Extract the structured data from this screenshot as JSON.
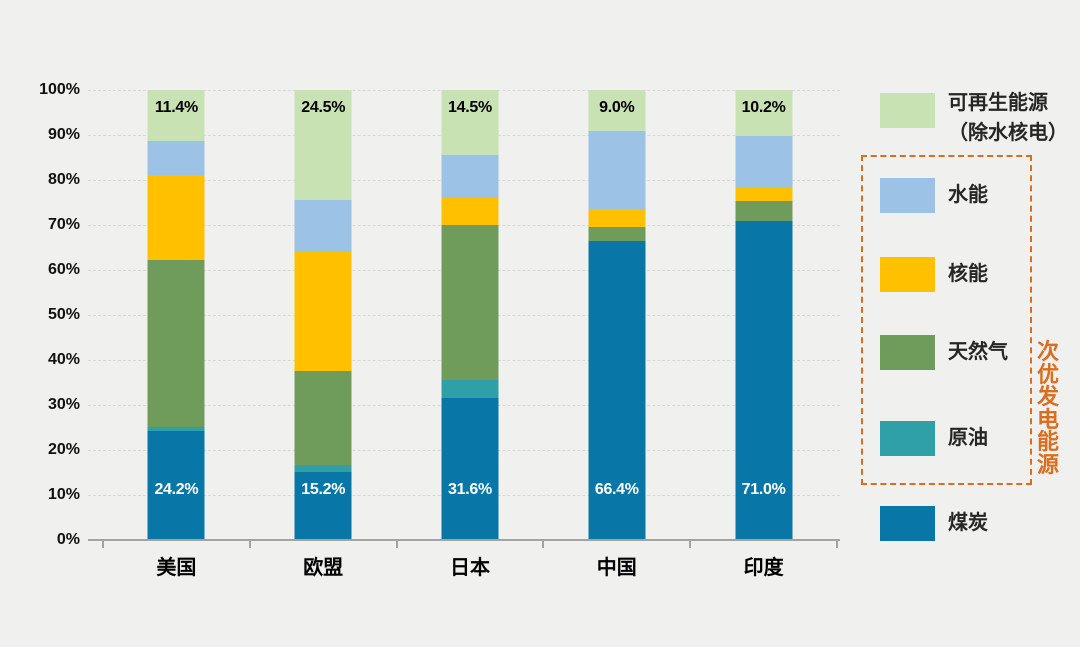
{
  "colors": {
    "background": "#f0f0ee",
    "grid": "#d7d7d4",
    "axis": "#a3a3a3",
    "coal": "#0877a8",
    "oil": "#2fa0a8",
    "gas": "#6f9b5b",
    "nuclear": "#ffc000",
    "hydro": "#9cc2e5",
    "renewable": "#c9e2b4",
    "group_accent": "#d96e20"
  },
  "chart_data": {
    "type": "bar",
    "stacked": true,
    "unit": "%",
    "categories": [
      "美国",
      "欧盟",
      "日本",
      "中国",
      "印度"
    ],
    "series": [
      {
        "key": "coal",
        "name": "煤炭",
        "color": "#0877a8",
        "values": [
          24.2,
          15.2,
          31.6,
          66.4,
          71.0
        ]
      },
      {
        "key": "oil",
        "name": "原油",
        "color": "#2fa0a8",
        "values": [
          1.0,
          1.5,
          4.0,
          0.0,
          0.0
        ]
      },
      {
        "key": "gas",
        "name": "天然气",
        "color": "#6f9b5b",
        "values": [
          37.0,
          20.8,
          34.3,
          3.1,
          4.3
        ]
      },
      {
        "key": "nuclear",
        "name": "核能",
        "color": "#ffc000",
        "values": [
          18.9,
          26.5,
          6.1,
          4.1,
          3.0
        ]
      },
      {
        "key": "hydro",
        "name": "水能",
        "color": "#9cc2e5",
        "values": [
          7.5,
          11.5,
          9.5,
          17.4,
          11.5
        ]
      },
      {
        "key": "renewable",
        "name": "可再生能源（除水核电）",
        "color": "#c9e2b4",
        "values": [
          11.4,
          24.5,
          14.5,
          9.0,
          10.2
        ]
      }
    ],
    "data_labels": {
      "coal": [
        "24.2%",
        "15.2%",
        "31.6%",
        "66.4%",
        "71.0%"
      ],
      "renewable": [
        "11.4%",
        "24.5%",
        "14.5%",
        "9.0%",
        "10.2%"
      ]
    },
    "y_ticks": [
      "0%",
      "10%",
      "20%",
      "30%",
      "40%",
      "50%",
      "60%",
      "70%",
      "80%",
      "90%",
      "100%"
    ],
    "ylim": [
      0,
      100
    ],
    "grid": "dashed-horizontal",
    "legend_position": "right"
  },
  "legend": {
    "items": [
      {
        "key": "renewable",
        "label": "可再生能源",
        "label2": "（除水核电）",
        "color": "#c9e2b4",
        "in_group": false
      },
      {
        "key": "hydro",
        "label": "水能",
        "color": "#9cc2e5",
        "in_group": true
      },
      {
        "key": "nuclear",
        "label": "核能",
        "color": "#ffc000",
        "in_group": true
      },
      {
        "key": "gas",
        "label": "天然气",
        "color": "#6f9b5b",
        "in_group": true
      },
      {
        "key": "oil",
        "label": "原油",
        "color": "#2fa0a8",
        "in_group": true
      },
      {
        "key": "coal",
        "label": "煤炭",
        "color": "#0877a8",
        "in_group": false
      }
    ],
    "group_label": "次优发电能源"
  }
}
